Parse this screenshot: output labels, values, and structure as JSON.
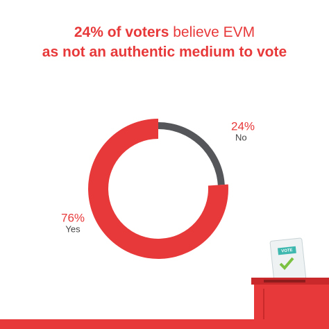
{
  "chart_data": {
    "type": "donut",
    "title": {
      "emphasis": "24% of voters",
      "rest": "believe EVM",
      "line2": "as not an authentic medium to vote"
    },
    "categories": [
      "No",
      "Yes"
    ],
    "values": [
      24,
      76
    ],
    "value_labels": [
      "24%",
      "76%"
    ],
    "colors": [
      "#555659",
      "#e8393a"
    ],
    "ballot_label": "VOTE"
  }
}
